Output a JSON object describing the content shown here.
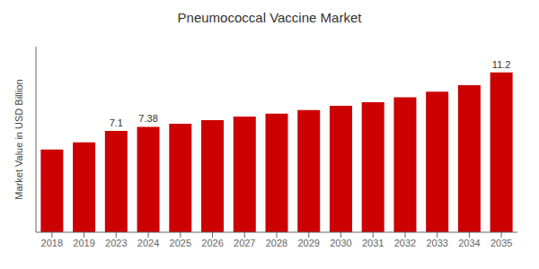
{
  "chart_data": {
    "type": "bar",
    "title": "Pneumococcal Vaccine Market",
    "ylabel": "Market Value in USD Billion",
    "categories": [
      "2018",
      "2019",
      "2023",
      "2024",
      "2025",
      "2026",
      "2027",
      "2028",
      "2029",
      "2030",
      "2031",
      "2032",
      "2033",
      "2034",
      "2035"
    ],
    "values": [
      5.8,
      6.3,
      7.1,
      7.38,
      7.6,
      7.85,
      8.1,
      8.3,
      8.55,
      8.85,
      9.1,
      9.45,
      9.85,
      10.3,
      11.2
    ],
    "value_labels": [
      null,
      null,
      "7.1",
      "7.38",
      null,
      null,
      null,
      null,
      null,
      null,
      null,
      null,
      null,
      null,
      "11.2"
    ],
    "color": "#cc0000",
    "ylim": [
      0,
      13
    ],
    "yticks": [],
    "tick_labels": "x",
    "grid": false
  }
}
